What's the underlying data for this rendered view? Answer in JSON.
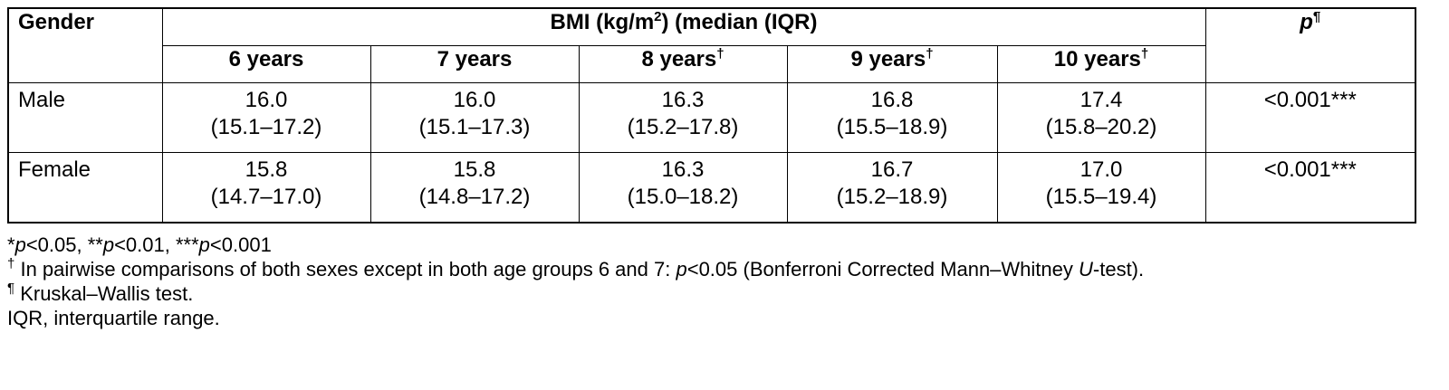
{
  "table": {
    "header": {
      "gender": "Gender",
      "group": [
        "BMI (kg/m",
        "2",
        ") (median (IQR)"
      ],
      "p": [
        "p",
        "¶"
      ],
      "ages": [
        {
          "label": "6 years",
          "mark": null
        },
        {
          "label": "7 years",
          "mark": null
        },
        {
          "label": "8 years",
          "mark": "†"
        },
        {
          "label": "9 years",
          "mark": "†"
        },
        {
          "label": "10 years",
          "mark": "†"
        }
      ]
    },
    "rows": [
      {
        "gender": "Male",
        "cells": [
          {
            "median": "16.0",
            "iqr": "(15.1–17.2)"
          },
          {
            "median": "16.0",
            "iqr": "(15.1–17.3)"
          },
          {
            "median": "16.3",
            "iqr": "(15.2–17.8)"
          },
          {
            "median": "16.8",
            "iqr": "(15.5–18.9)"
          },
          {
            "median": "17.4",
            "iqr": "(15.8–20.2)"
          }
        ],
        "p": "<0.001***"
      },
      {
        "gender": "Female",
        "cells": [
          {
            "median": "15.8",
            "iqr": "(14.7–17.0)"
          },
          {
            "median": "15.8",
            "iqr": "(14.8–17.2)"
          },
          {
            "median": "16.3",
            "iqr": "(15.0–18.2)"
          },
          {
            "median": "16.7",
            "iqr": "(15.2–18.9)"
          },
          {
            "median": "17.0",
            "iqr": "(15.5–19.4)"
          }
        ],
        "p": "<0.001***"
      }
    ]
  },
  "footnotes": [
    [
      "*",
      "p",
      "<0.05, **",
      "p",
      "<0.01, ***",
      "p",
      "<0.001"
    ],
    [
      "†",
      "In pairwise comparisons of both sexes except in both age groups 6 and 7: ",
      "p",
      "<0.05 (Bonferroni Corrected Mann–Whitney ",
      "U",
      "-test)."
    ],
    [
      "¶",
      "Kruskal–Wallis test."
    ],
    [
      "IQR, interquartile range."
    ]
  ]
}
